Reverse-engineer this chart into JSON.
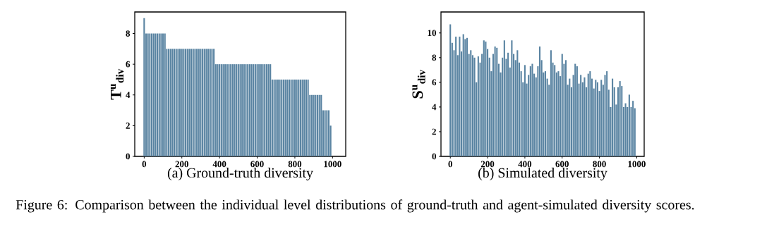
{
  "chart_data": [
    {
      "type": "bar",
      "xlabel": "(a) Ground-truth diversity",
      "ylabel": "T$^{u}$$_{div}$",
      "color": "#5a84a2",
      "x": [
        0,
        10,
        20,
        30,
        40,
        50,
        60,
        70,
        80,
        90,
        100,
        110,
        120,
        130,
        140,
        150,
        160,
        170,
        180,
        190,
        200,
        210,
        220,
        230,
        240,
        250,
        260,
        270,
        280,
        290,
        300,
        310,
        320,
        330,
        340,
        350,
        360,
        370,
        380,
        390,
        400,
        410,
        420,
        430,
        440,
        450,
        460,
        470,
        480,
        490,
        500,
        510,
        520,
        530,
        540,
        550,
        560,
        570,
        580,
        590,
        600,
        610,
        620,
        630,
        640,
        650,
        660,
        670,
        680,
        690,
        700,
        710,
        720,
        730,
        740,
        750,
        760,
        770,
        780,
        790,
        800,
        810,
        820,
        830,
        840,
        850,
        860,
        870,
        880,
        890,
        900,
        910,
        920,
        930,
        940,
        950,
        960,
        970,
        980,
        990
      ],
      "values": [
        9,
        8,
        8,
        8,
        8,
        8,
        8,
        8,
        8,
        8,
        8,
        8,
        7,
        7,
        7,
        7,
        7,
        7,
        7,
        7,
        7,
        7,
        7,
        7,
        7,
        7,
        7,
        7,
        7,
        7,
        7,
        7,
        7,
        7,
        7,
        7,
        7,
        7,
        6,
        6,
        6,
        6,
        6,
        6,
        6,
        6,
        6,
        6,
        6,
        6,
        6,
        6,
        6,
        6,
        6,
        6,
        6,
        6,
        6,
        6,
        6,
        6,
        6,
        6,
        6,
        6,
        6,
        6,
        5,
        5,
        5,
        5,
        5,
        5,
        5,
        5,
        5,
        5,
        5,
        5,
        5,
        5,
        5,
        5,
        5,
        5,
        5,
        5,
        4,
        4,
        4,
        4,
        4,
        4,
        4,
        3,
        3,
        3,
        3,
        2
      ],
      "xlim": [
        -50,
        1070
      ],
      "ylim": [
        0,
        9.4
      ],
      "xticks": [
        0,
        200,
        400,
        600,
        800,
        1000
      ],
      "yticks": [
        0,
        2,
        4,
        6,
        8
      ],
      "annotations": [
        "Figure 6: Comparison between the individual level distributions of ground-truth and agent-simulated diversity scores."
      ]
    },
    {
      "type": "bar",
      "xlabel": "(b) Simulated diversity",
      "ylabel": "S$^{u}$$_{div}$",
      "color": "#5a84a2",
      "x": [
        0,
        10,
        20,
        30,
        40,
        50,
        60,
        70,
        80,
        90,
        100,
        110,
        120,
        130,
        140,
        150,
        160,
        170,
        180,
        190,
        200,
        210,
        220,
        230,
        240,
        250,
        260,
        270,
        280,
        290,
        300,
        310,
        320,
        330,
        340,
        350,
        360,
        370,
        380,
        390,
        400,
        410,
        420,
        430,
        440,
        450,
        460,
        470,
        480,
        490,
        500,
        510,
        520,
        530,
        540,
        550,
        560,
        570,
        580,
        590,
        600,
        610,
        620,
        630,
        640,
        650,
        660,
        670,
        680,
        690,
        700,
        710,
        720,
        730,
        740,
        750,
        760,
        770,
        780,
        790,
        800,
        810,
        820,
        830,
        840,
        850,
        860,
        870,
        880,
        890,
        900,
        910,
        920,
        930,
        940,
        950,
        960,
        970,
        980,
        990
      ],
      "values": [
        10.7,
        9.2,
        8.6,
        9.7,
        8.2,
        9.7,
        8.5,
        9.9,
        9.5,
        9.6,
        8.3,
        8.6,
        8.2,
        8.0,
        6.0,
        8.1,
        7.6,
        8.3,
        9.4,
        9.3,
        8.7,
        8.0,
        6.9,
        8.3,
        8.9,
        8.8,
        7.5,
        6.8,
        8.0,
        9.4,
        7.9,
        8.4,
        7.2,
        9.4,
        8.3,
        7.8,
        8.6,
        7.6,
        6.9,
        6.0,
        7.4,
        5.9,
        6.6,
        7.3,
        7.5,
        6.7,
        6.4,
        7.3,
        8.9,
        7.8,
        6.8,
        6.9,
        6.3,
        5.8,
        8.6,
        7.6,
        7.4,
        6.8,
        6.9,
        6.5,
        8.3,
        7.5,
        7.8,
        5.8,
        6.3,
        5.6,
        6.6,
        7.5,
        7.3,
        5.9,
        6.6,
        6.0,
        6.4,
        5.6,
        6.7,
        6.9,
        6.3,
        5.5,
        6.2,
        6.0,
        5.3,
        6.2,
        5.8,
        6.6,
        6.9,
        5.4,
        4.0,
        6.3,
        5.6,
        4.2,
        5.6,
        6.1,
        5.7,
        4.0,
        4.3,
        4.0,
        5.0,
        4.0,
        4.5,
        3.9
      ],
      "xlim": [
        -50,
        1040
      ],
      "ylim": [
        0,
        11.7
      ],
      "xticks": [
        0,
        200,
        400,
        600,
        800,
        1000
      ],
      "yticks": [
        0,
        2,
        4,
        6,
        8,
        10
      ]
    }
  ]
}
